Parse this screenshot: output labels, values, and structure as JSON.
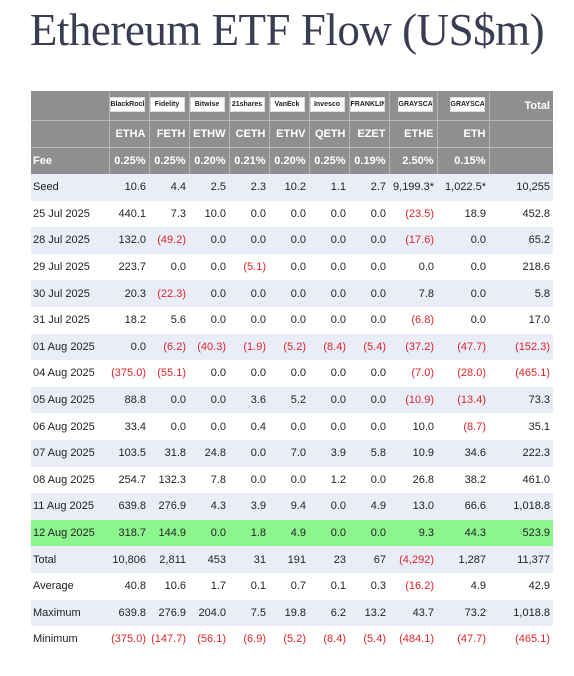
{
  "title": "Ethereum ETF Flow (US$m)",
  "colors": {
    "header_bg": "#8f8f8f",
    "row_tint": "#e9edf8",
    "highlight": "#8df58d",
    "negative": "#e0242a"
  },
  "logos": [
    "BlackRock",
    "Fidelity",
    "Bitwise",
    "21shares",
    "VanEck",
    "Invesco",
    "FRANKLIN TEMPLETON",
    "GRAYSCALE",
    "GRAYSCALE"
  ],
  "total_header": "Total",
  "tickers": [
    "ETHA",
    "FETH",
    "ETHW",
    "CETH",
    "ETHV",
    "QETH",
    "EZET",
    "ETHE",
    "ETH"
  ],
  "fee_label": "Fee",
  "fees": [
    "0.25%",
    "0.25%",
    "0.20%",
    "0.21%",
    "0.20%",
    "0.25%",
    "0.19%",
    "2.50%",
    "0.15%"
  ],
  "rows": [
    {
      "date": "Seed",
      "values": [
        "10.6",
        "4.4",
        "2.5",
        "2.3",
        "10.2",
        "1.1",
        "2.7",
        "9,199.3*",
        "1,022.5*"
      ],
      "total": "10,255"
    },
    {
      "date": "25 Jul 2025",
      "values": [
        "440.1",
        "7.3",
        "10.0",
        "0.0",
        "0.0",
        "0.0",
        "0.0",
        "(23.5)",
        "18.9"
      ],
      "total": "452.8"
    },
    {
      "date": "28 Jul 2025",
      "values": [
        "132.0",
        "(49.2)",
        "0.0",
        "0.0",
        "0.0",
        "0.0",
        "0.0",
        "(17.6)",
        "0.0"
      ],
      "total": "65.2"
    },
    {
      "date": "29 Jul 2025",
      "values": [
        "223.7",
        "0.0",
        "0.0",
        "(5.1)",
        "0.0",
        "0.0",
        "0.0",
        "0.0",
        "0.0"
      ],
      "total": "218.6"
    },
    {
      "date": "30 Jul 2025",
      "values": [
        "20.3",
        "(22.3)",
        "0.0",
        "0.0",
        "0.0",
        "0.0",
        "0.0",
        "7.8",
        "0.0"
      ],
      "total": "5.8"
    },
    {
      "date": "31 Jul 2025",
      "values": [
        "18.2",
        "5.6",
        "0.0",
        "0.0",
        "0.0",
        "0.0",
        "0.0",
        "(6.8)",
        "0.0"
      ],
      "total": "17.0"
    },
    {
      "date": "01 Aug 2025",
      "values": [
        "0.0",
        "(6.2)",
        "(40.3)",
        "(1.9)",
        "(5.2)",
        "(8.4)",
        "(5.4)",
        "(37.2)",
        "(47.7)"
      ],
      "total": "(152.3)"
    },
    {
      "date": "04 Aug 2025",
      "values": [
        "(375.0)",
        "(55.1)",
        "0.0",
        "0.0",
        "0.0",
        "0.0",
        "0.0",
        "(7.0)",
        "(28.0)"
      ],
      "total": "(465.1)"
    },
    {
      "date": "05 Aug 2025",
      "values": [
        "88.8",
        "0.0",
        "0.0",
        "3.6",
        "5.2",
        "0.0",
        "0.0",
        "(10.9)",
        "(13.4)"
      ],
      "total": "73.3"
    },
    {
      "date": "06 Aug 2025",
      "values": [
        "33.4",
        "0.0",
        "0.0",
        "0.4",
        "0.0",
        "0.0",
        "0.0",
        "10.0",
        "(8.7)"
      ],
      "total": "35.1"
    },
    {
      "date": "07 Aug 2025",
      "values": [
        "103.5",
        "31.8",
        "24.8",
        "0.0",
        "7.0",
        "3.9",
        "5.8",
        "10.9",
        "34.6"
      ],
      "total": "222.3"
    },
    {
      "date": "08 Aug 2025",
      "values": [
        "254.7",
        "132.3",
        "7.8",
        "0.0",
        "0.0",
        "1.2",
        "0.0",
        "26.8",
        "38.2"
      ],
      "total": "461.0"
    },
    {
      "date": "11 Aug 2025",
      "values": [
        "639.8",
        "276.9",
        "4.3",
        "3.9",
        "9.4",
        "0.0",
        "4.9",
        "13.0",
        "66.6"
      ],
      "total": "1,018.8"
    },
    {
      "date": "12 Aug 2025",
      "values": [
        "318.7",
        "144.9",
        "0.0",
        "1.8",
        "4.9",
        "0.0",
        "0.0",
        "9.3",
        "44.3"
      ],
      "total": "523.9",
      "highlight": true
    }
  ],
  "summary": [
    {
      "label": "Total",
      "values": [
        "10,806",
        "2,811",
        "453",
        "31",
        "191",
        "23",
        "67",
        "(4,292)",
        "1,287"
      ],
      "total": "11,377"
    },
    {
      "label": "Average",
      "values": [
        "40.8",
        "10.6",
        "1.7",
        "0.1",
        "0.7",
        "0.1",
        "0.3",
        "(16.2)",
        "4.9"
      ],
      "total": "42.9"
    },
    {
      "label": "Maximum",
      "values": [
        "639.8",
        "276.9",
        "204.0",
        "7.5",
        "19.8",
        "6.2",
        "13.2",
        "43.7",
        "73.2"
      ],
      "total": "1,018.8"
    },
    {
      "label": "Minimum",
      "values": [
        "(375.0)",
        "(147.7)",
        "(56.1)",
        "(6.9)",
        "(5.2)",
        "(8.4)",
        "(5.4)",
        "(484.1)",
        "(47.7)"
      ],
      "total": "(465.1)"
    }
  ]
}
